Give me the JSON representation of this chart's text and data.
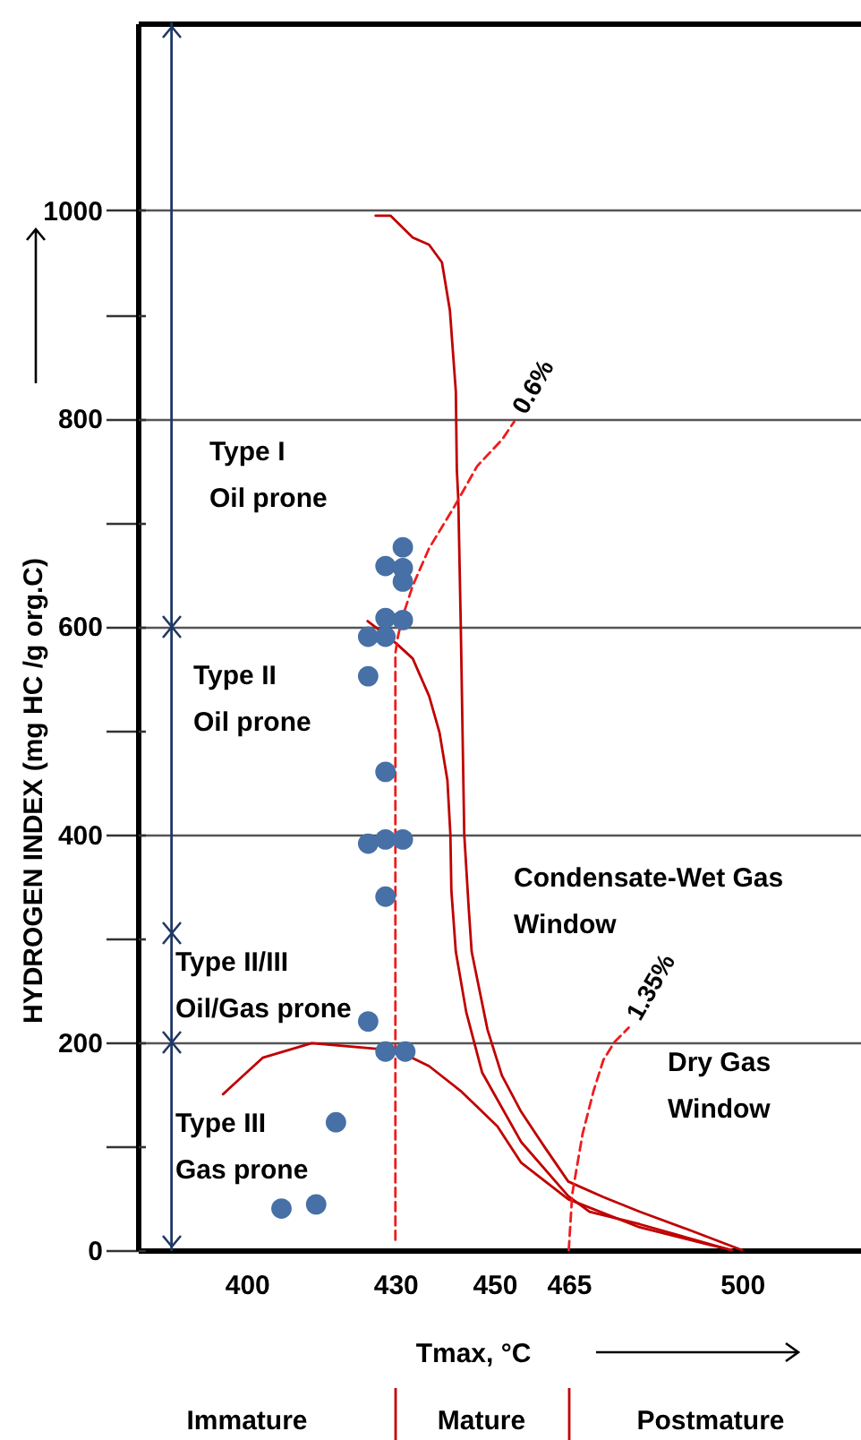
{
  "chart_data": {
    "type": "line",
    "xlabel": "Tmax, °C",
    "ylabel": "HYDROGEN INDEX (mg HC /g org.C)",
    "xlim": [
      378,
      524
    ],
    "ylim": [
      0,
      1180
    ],
    "xticks": [
      400,
      430,
      450,
      465,
      500
    ],
    "yticks": [
      0,
      {
        "value": 100,
        "label": null
      },
      200,
      {
        "value": 300,
        "label": null
      },
      400,
      {
        "value": 500,
        "label": null
      },
      600,
      {
        "value": 700,
        "label": null
      },
      800,
      {
        "value": 900,
        "label": null
      },
      1000
    ],
    "grid": "y",
    "series": [
      {
        "color": "#c00000",
        "line_style": "solid",
        "x": [
          426,
          429,
          433.5,
          436.8,
          439.4,
          441,
          442.2,
          442.4,
          442.7,
          443.2,
          443.9,
          444.8,
          445.4,
          448.6,
          451.5,
          455.4,
          460,
          464.9,
          472,
          479.3,
          489,
          500
        ],
        "values": [
          995,
          995,
          974,
          967,
          950,
          904,
          826,
          751,
          722,
          600,
          400,
          329,
          287,
          212,
          168,
          133,
          100,
          66,
          51,
          37,
          20,
          0
        ]
      },
      {
        "color": "#c00000",
        "line_style": "solid",
        "x": [
          424.4,
          427.4,
          430.3,
          433.5,
          436.8,
          438.9,
          440.5,
          441.1,
          441.3,
          442.2,
          444.3,
          447.5,
          455.4,
          464.9,
          469.2,
          479.3,
          497.8
        ],
        "values": [
          605,
          594,
          583,
          569,
          533,
          498,
          452,
          400,
          346,
          287,
          229,
          171,
          104,
          52,
          37,
          25,
          0
        ]
      },
      {
        "color": "#c00000",
        "line_style": "solid",
        "x": [
          395.2,
          403.2,
          413.1,
          423,
          430.3,
          436.8,
          443.2,
          450.6,
          455.4,
          464.9,
          479.3,
          493.5,
          498
        ],
        "values": [
          150,
          185,
          199,
          195,
          192,
          177,
          153,
          119,
          84,
          49,
          22,
          5,
          0
        ]
      },
      {
        "name": "0.6%",
        "color": "#ee1c1c",
        "line_style": "dashed",
        "x": [
          430,
          430,
          430.5,
          431.5,
          433.5,
          436.8,
          442,
          446.5,
          451.6,
          454
        ],
        "values": [
          10,
          574,
          590,
          610,
          639,
          675,
          716,
          754,
          780,
          797
        ]
      },
      {
        "name": "1.35%",
        "color": "#ee1c1c",
        "line_style": "dashed",
        "x": [
          465,
          465.7,
          467.8,
          470,
          472,
          474.2,
          477.1
        ],
        "values": [
          0,
          54,
          112,
          153,
          183,
          200,
          214
        ]
      },
      {
        "color": "#1f3864",
        "line_style": "solid",
        "x": [
          384.8,
          384.8,
          384.8,
          384.8,
          384.8
        ],
        "values": [
          0,
          200,
          305,
          600,
          1180
        ]
      },
      {
        "type": "scatter",
        "color": "#4670a6",
        "marker": "circle",
        "x": [
          428,
          431.5,
          431.5,
          431.5,
          428,
          431.5,
          424.5,
          428,
          424.5,
          428,
          424.5,
          428,
          431.5,
          428,
          424.5,
          428,
          432,
          418,
          407,
          414
        ],
        "values": [
          658,
          676,
          656,
          643,
          608,
          606,
          590,
          590,
          552,
          460,
          391,
          395,
          395,
          340,
          220,
          191,
          191,
          123,
          40,
          44
        ]
      }
    ],
    "annotations": [
      "Type I\nOil prone",
      "Type II\nOil prone",
      "Condensate-Wet Gas\nWindow",
      "Type II/III\nOil/Gas prone",
      "Dry Gas\nWindow",
      "Type III\nGas prone",
      "Immature",
      "Mature",
      "Postmature"
    ]
  }
}
